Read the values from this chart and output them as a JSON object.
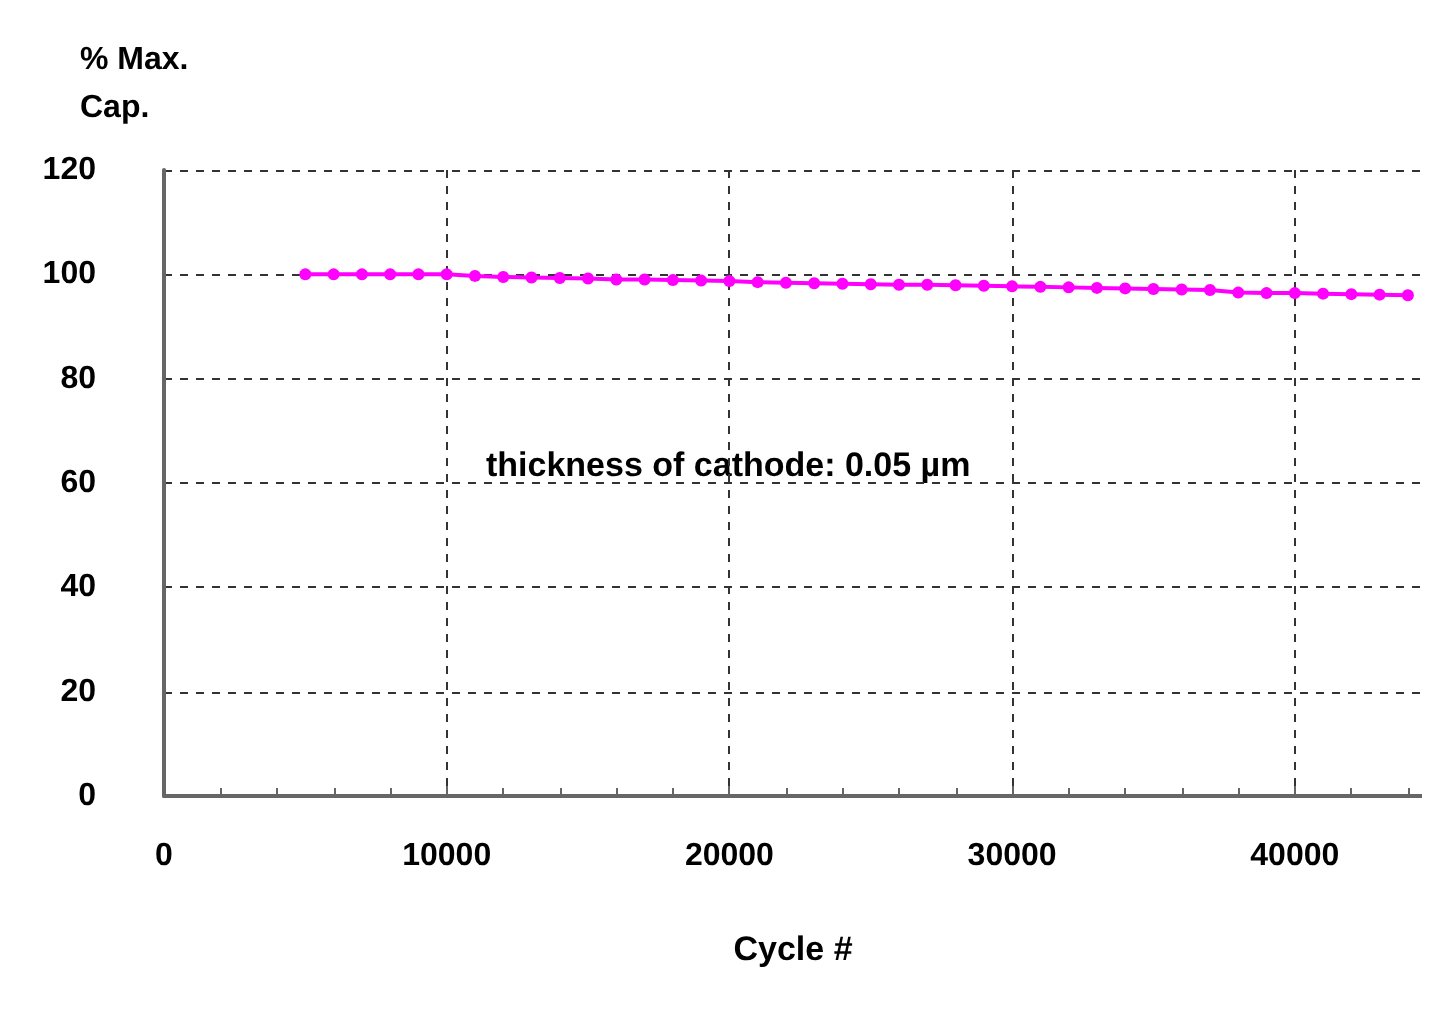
{
  "chart_data": {
    "type": "line",
    "xlabel": "Cycle #",
    "ylabel": "% Max.\nCap.",
    "annotations": [
      "thickness of cathode: 0.05 µm"
    ],
    "x": [
      5000,
      6000,
      7000,
      8000,
      9000,
      10000,
      11000,
      12000,
      13000,
      14000,
      15000,
      16000,
      17000,
      18000,
      19000,
      20000,
      21000,
      22000,
      23000,
      24000,
      25000,
      26000,
      27000,
      28000,
      29000,
      30000,
      31000,
      32000,
      33000,
      34000,
      35000,
      36000,
      37000,
      38000,
      39000,
      40000,
      41000,
      42000,
      43000,
      44000
    ],
    "series": [
      {
        "color": "#ff00ff",
        "values": [
          100,
          100,
          100,
          100,
          100,
          100,
          99.7,
          99.5,
          99.4,
          99.3,
          99.2,
          99,
          99,
          98.9,
          98.8,
          98.7,
          98.5,
          98.4,
          98.3,
          98.2,
          98.1,
          98,
          98,
          97.9,
          97.8,
          97.7,
          97.6,
          97.5,
          97.4,
          97.3,
          97.2,
          97.1,
          97,
          96.5,
          96.4,
          96.4,
          96.3,
          96.2,
          96.1,
          96
        ]
      }
    ],
    "xlim": [
      0,
      44500
    ],
    "xticks": [
      0,
      10000,
      20000,
      30000,
      40000
    ],
    "ylim": [
      0,
      120
    ],
    "yticks": [
      0,
      20,
      40,
      60,
      80,
      100,
      120
    ],
    "grid": true,
    "marker": "circle",
    "line_style": "solid"
  }
}
